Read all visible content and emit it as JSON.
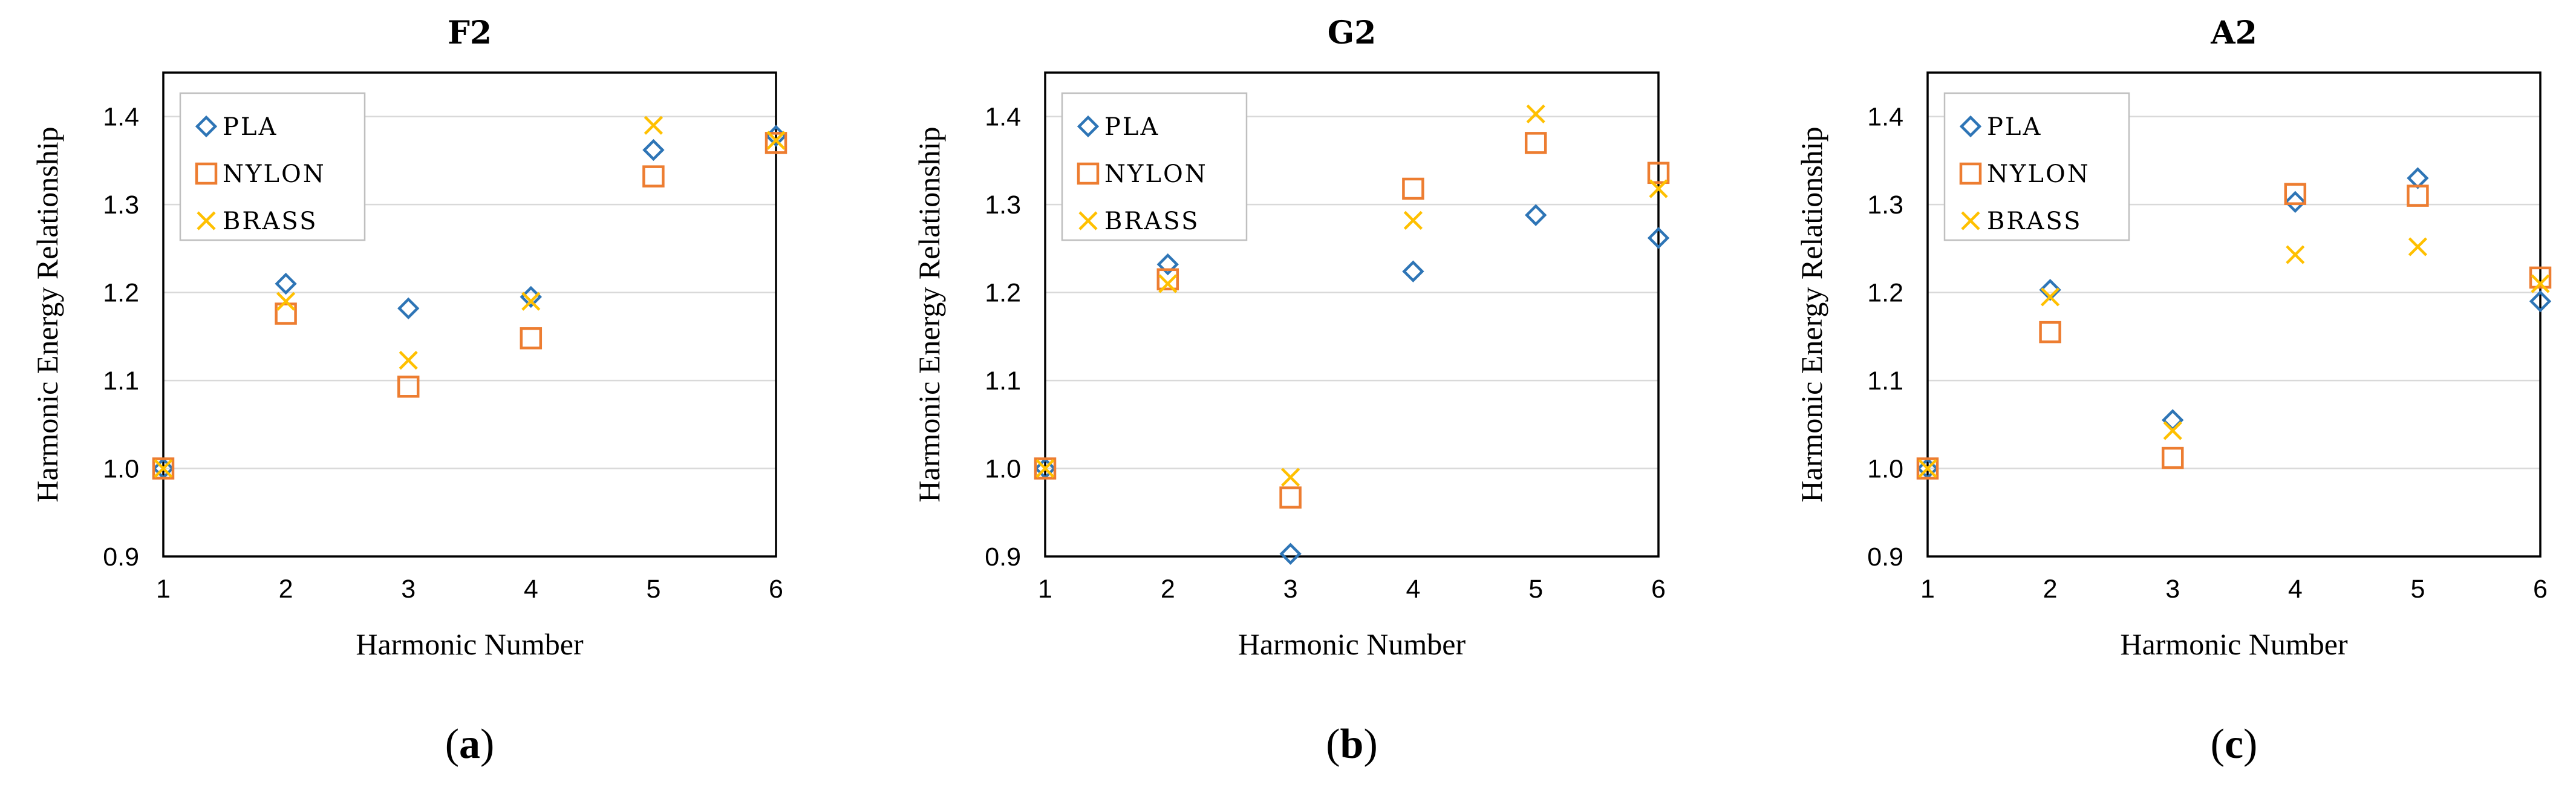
{
  "chart_data": [
    {
      "type": "scatter",
      "title": "F2",
      "panel": "a",
      "xlabel": "Harmonic Number",
      "ylabel": "Harmonic Energy Relationship",
      "xlim": [
        1,
        6
      ],
      "ylim": [
        0.9,
        1.45
      ],
      "xticks": [
        "1",
        "2",
        "3",
        "4",
        "5",
        "6"
      ],
      "yticks": [
        "0.9",
        "1.0",
        "1.1",
        "1.2",
        "1.3",
        "1.4"
      ],
      "grid": "horizontal",
      "legend": "top-left",
      "x": [
        1,
        2,
        3,
        4,
        5,
        6
      ],
      "series": [
        {
          "name": "PLA",
          "marker": "diamond",
          "color": "#2E75B6",
          "values": [
            1.0,
            1.21,
            1.182,
            1.195,
            1.362,
            1.378
          ]
        },
        {
          "name": "NYLON",
          "marker": "square",
          "color": "#ED7D31",
          "values": [
            1.0,
            1.176,
            1.093,
            1.148,
            1.332,
            1.37
          ]
        },
        {
          "name": "BRASS",
          "marker": "x",
          "color": "#FFC000",
          "values": [
            1.0,
            1.19,
            1.123,
            1.19,
            1.39,
            1.373
          ]
        }
      ]
    },
    {
      "type": "scatter",
      "title": "G2",
      "panel": "b",
      "xlabel": "Harmonic Number",
      "ylabel": "Harmonic Energy Relationship",
      "xlim": [
        1,
        6
      ],
      "ylim": [
        0.9,
        1.45
      ],
      "xticks": [
        "1",
        "2",
        "3",
        "4",
        "5",
        "6"
      ],
      "yticks": [
        "0.9",
        "1.0",
        "1.1",
        "1.2",
        "1.3",
        "1.4"
      ],
      "grid": "horizontal",
      "legend": "top-left",
      "x": [
        1,
        2,
        3,
        4,
        5,
        6
      ],
      "series": [
        {
          "name": "PLA",
          "marker": "diamond",
          "color": "#2E75B6",
          "values": [
            1.0,
            1.232,
            0.903,
            1.224,
            1.288,
            1.262
          ]
        },
        {
          "name": "NYLON",
          "marker": "square",
          "color": "#ED7D31",
          "values": [
            1.0,
            1.215,
            0.967,
            1.318,
            1.37,
            1.336
          ]
        },
        {
          "name": "BRASS",
          "marker": "x",
          "color": "#FFC000",
          "values": [
            1.0,
            1.21,
            0.99,
            1.282,
            1.403,
            1.318
          ]
        }
      ]
    },
    {
      "type": "scatter",
      "title": "A2",
      "panel": "c",
      "xlabel": "Harmonic Number",
      "ylabel": "Harmonic Energy Relationship",
      "xlim": [
        1,
        6
      ],
      "ylim": [
        0.9,
        1.45
      ],
      "xticks": [
        "1",
        "2",
        "3",
        "4",
        "5",
        "6"
      ],
      "yticks": [
        "0.9",
        "1.0",
        "1.1",
        "1.2",
        "1.3",
        "1.4"
      ],
      "grid": "horizontal",
      "legend": "top-left",
      "x": [
        1,
        2,
        3,
        4,
        5,
        6
      ],
      "series": [
        {
          "name": "PLA",
          "marker": "diamond",
          "color": "#2E75B6",
          "values": [
            1.0,
            1.203,
            1.055,
            1.303,
            1.33,
            1.19
          ]
        },
        {
          "name": "NYLON",
          "marker": "square",
          "color": "#ED7D31",
          "values": [
            1.0,
            1.155,
            1.012,
            1.312,
            1.31,
            1.217
          ]
        },
        {
          "name": "BRASS",
          "marker": "x",
          "color": "#FFC000",
          "values": [
            1.0,
            1.195,
            1.043,
            1.243,
            1.252,
            1.21
          ]
        }
      ]
    }
  ]
}
